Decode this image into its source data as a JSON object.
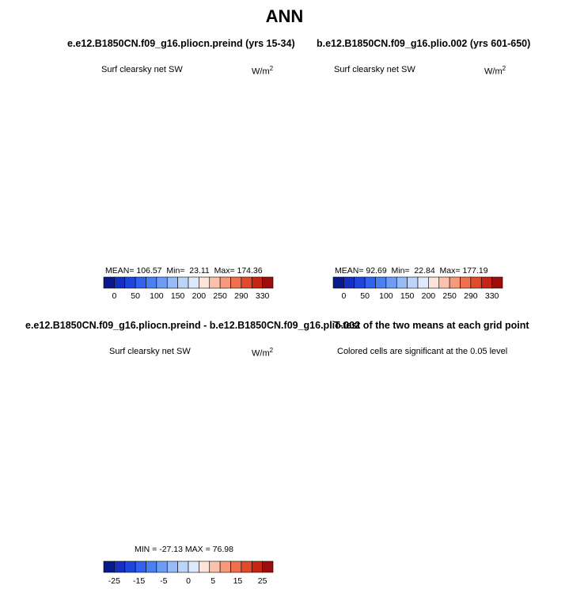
{
  "figure": {
    "title": "ANN"
  },
  "panels": [
    {
      "title": "e.e12.B1850CN.f09_g16.pliocn.preind (yrs 15-34)",
      "variable": "Surf clearsky net SW",
      "units": "W/m",
      "units_sup": "2",
      "stats": {
        "mean_label": "MEAN=",
        "mean": "106.57",
        "min_label": "Min=",
        "min": "23.11",
        "max_label": "Max=",
        "max": "174.36"
      },
      "colorbar": {
        "ticks": [
          "0",
          "50",
          "100",
          "150",
          "200",
          "250",
          "290",
          "330"
        ],
        "colors": [
          "#0a1a8c",
          "#1530c0",
          "#1f46dc",
          "#2f63f0",
          "#4a80f2",
          "#6f9cf5",
          "#98bbf7",
          "#bcd4fa",
          "#dde9fd",
          "#fde3d8",
          "#fbc2ab",
          "#f79a7c",
          "#f0704e",
          "#e24a2c",
          "#c52515",
          "#9c0e0b"
        ]
      }
    },
    {
      "title": "b.e12.B1850CN.f09_g16.plio.002 (yrs 601-650)",
      "variable": "Surf clearsky net SW",
      "units": "W/m",
      "units_sup": "2",
      "stats": {
        "mean_label": "MEAN=",
        "mean": "92.69",
        "min_label": "Min=",
        "min": "22.84",
        "max_label": "Max=",
        "max": "177.19"
      },
      "colorbar": {
        "ticks": [
          "0",
          "50",
          "100",
          "150",
          "200",
          "250",
          "290",
          "330"
        ],
        "colors": [
          "#0a1a8c",
          "#1530c0",
          "#1f46dc",
          "#2f63f0",
          "#4a80f2",
          "#6f9cf5",
          "#98bbf7",
          "#bcd4fa",
          "#dde9fd",
          "#fde3d8",
          "#fbc2ab",
          "#f79a7c",
          "#f0704e",
          "#e24a2c",
          "#c52515",
          "#9c0e0b"
        ]
      }
    },
    {
      "title": "e.e12.B1850CN.f09_g16.pliocn.preind - b.e12.B1850CN.f09_g16.plio.002",
      "variable": "Surf clearsky net SW",
      "units": "W/m",
      "units_sup": "2",
      "stats": {
        "min_label": "MIN =",
        "min": "-27.13",
        "max_label": "MAX =",
        "max": "76.98"
      },
      "colorbar": {
        "ticks": [
          "-25",
          "-15",
          "-5",
          "0",
          "5",
          "15",
          "25"
        ],
        "colors": [
          "#0a1a8c",
          "#1530c0",
          "#1f46dc",
          "#2f63f0",
          "#4a80f2",
          "#6f9cf5",
          "#98bbf7",
          "#bcd4fa",
          "#dde9fd",
          "#fde3d8",
          "#fbc2ab",
          "#f79a7c",
          "#f0704e",
          "#e24a2c",
          "#c52515",
          "#9c0e0b"
        ]
      }
    },
    {
      "title": "T-test of the two means at each grid point",
      "subtitle": "Colored cells are significant at the 0.05 level",
      "fill_color": "#fa7748"
    }
  ],
  "chart_data": [
    {
      "type": "heatmap",
      "projection": "south-polar-stereographic",
      "title": "e.e12.B1850CN.f09_g16.pliocn.preind (yrs 15-34)",
      "variable": "Surf clearsky net SW",
      "units": "W/m^2",
      "mean": 106.57,
      "min": 23.11,
      "max": 174.36,
      "colorbar_ticks": [
        0,
        50,
        100,
        150,
        200,
        250,
        290,
        330
      ]
    },
    {
      "type": "heatmap",
      "projection": "south-polar-stereographic",
      "title": "b.e12.B1850CN.f09_g16.plio.002 (yrs 601-650)",
      "variable": "Surf clearsky net SW",
      "units": "W/m^2",
      "mean": 92.69,
      "min": 22.84,
      "max": 177.19,
      "colorbar_ticks": [
        0,
        50,
        100,
        150,
        200,
        250,
        290,
        330
      ]
    },
    {
      "type": "heatmap",
      "projection": "south-polar-stereographic",
      "title": "e.e12.B1850CN.f09_g16.pliocn.preind - b.e12.B1850CN.f09_g16.plio.002",
      "variable": "Surf clearsky net SW",
      "units": "W/m^2",
      "min": -27.13,
      "max": 76.98,
      "colorbar_ticks": [
        -25,
        -15,
        -5,
        0,
        5,
        15,
        25
      ]
    },
    {
      "type": "heatmap",
      "projection": "south-polar-stereographic",
      "title": "T-test of the two means at each grid point",
      "subtitle": "Colored cells are significant at the 0.05 level",
      "significance_level": 0.05
    }
  ]
}
